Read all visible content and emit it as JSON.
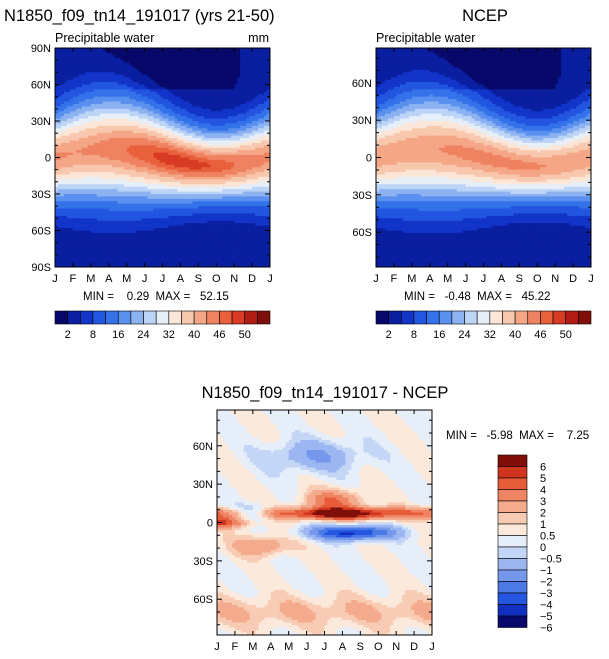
{
  "colors": {
    "abs_levels": [
      "#08086b",
      "#0a1ea0",
      "#1234c8",
      "#2256e0",
      "#3472ea",
      "#5a90ee",
      "#8cb2f2",
      "#bcd4f6",
      "#e6eef8",
      "#fbe6d8",
      "#f8c8ae",
      "#f4a686",
      "#ef8260",
      "#e8603c",
      "#d83a24",
      "#b01c14",
      "#800e0a"
    ],
    "diff_levels": [
      "#08086b",
      "#1230c0",
      "#2456e0",
      "#4b7ae6",
      "#7698ec",
      "#9cb6f2",
      "#c4d6f6",
      "#e6eefa",
      "#fbeadc",
      "#f8ccb4",
      "#f4aa8c",
      "#ef8462",
      "#e65c38",
      "#d0341e",
      "#800e0a"
    ]
  },
  "chart_data": [
    {
      "type": "heatmap",
      "title": "N1850_f09_tn14_191017 (yrs 21-50)",
      "subtitle": "Precipitable water",
      "units": "mm",
      "x": [
        "J",
        "F",
        "M",
        "A",
        "M",
        "J",
        "J",
        "A",
        "S",
        "O",
        "N",
        "D",
        "J"
      ],
      "y_ticks": [
        "90N",
        "60N",
        "30N",
        "0",
        "30S",
        "60S",
        "90S"
      ],
      "stats": "MIN =    0.29  MAX =   52.15",
      "min": 0.29,
      "max": 52.15,
      "colorbar_labels": [
        "2",
        "8",
        "16",
        "24",
        "32",
        "40",
        "46",
        "50"
      ],
      "equator_peak_month": 8.0,
      "equator_max": 49,
      "equator_min": 43
    },
    {
      "type": "heatmap",
      "title": "NCEP",
      "subtitle": "Precipitable water",
      "x": [
        "J",
        "F",
        "M",
        "A",
        "M",
        "J",
        "J",
        "A",
        "S",
        "O",
        "N",
        "D",
        "J"
      ],
      "y_ticks": [
        "60N",
        "30N",
        "0",
        "30S",
        "60S"
      ],
      "stats": "MIN =   -0.48  MAX =   45.22",
      "min": -0.48,
      "max": 45.22,
      "colorbar_labels": [
        "2",
        "8",
        "16",
        "24",
        "32",
        "40",
        "46",
        "50"
      ],
      "equator_peak_month": 7.5,
      "equator_max": 44,
      "equator_min": 42
    },
    {
      "type": "heatmap",
      "title": "N1850_f09_tn14_191017 - NCEP",
      "x": [
        "J",
        "F",
        "M",
        "A",
        "M",
        "J",
        "J",
        "A",
        "S",
        "O",
        "N",
        "D",
        "J"
      ],
      "y_ticks": [
        "60N",
        "30N",
        "0",
        "30S",
        "60S"
      ],
      "stats": "MIN =   -5.98  MAX =    7.25",
      "min": -5.98,
      "max": 7.25,
      "colorbar_labels": [
        "6",
        "5",
        "4",
        "3",
        "2",
        "1",
        "0.5",
        "0",
        "−0.5",
        "−1",
        "−2",
        "−3",
        "−4",
        "−5",
        "−6"
      ]
    }
  ]
}
